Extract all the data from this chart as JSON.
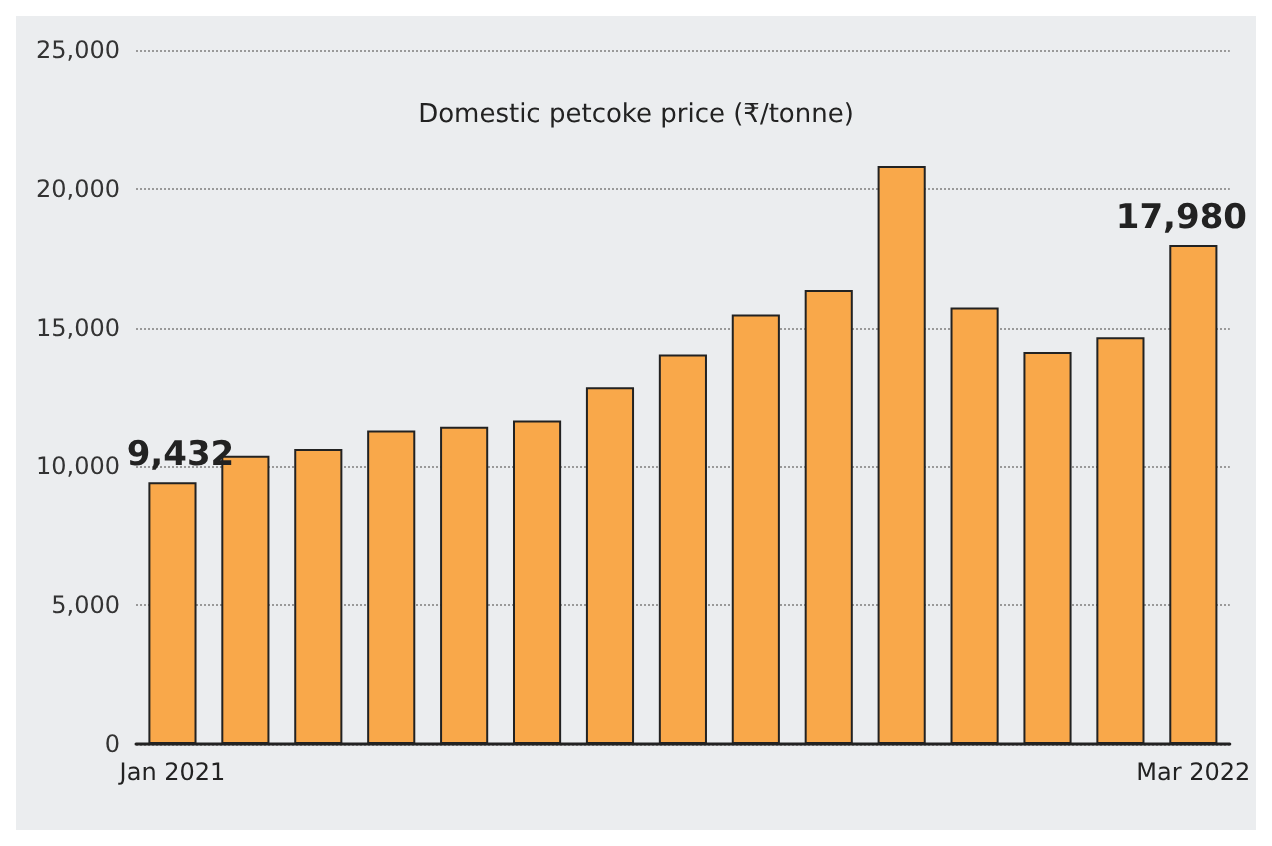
{
  "chart_data": {
    "type": "bar",
    "title": "Domestic petcoke price (₹/tonne)",
    "categories": [
      "Jan 2021",
      null,
      null,
      null,
      null,
      null,
      null,
      null,
      null,
      null,
      null,
      null,
      null,
      null,
      "Mar 2022"
    ],
    "values": [
      9432,
      10380,
      10630,
      11290,
      11430,
      11650,
      12850,
      14030,
      15470,
      16350,
      20820,
      15720,
      14120,
      14650,
      17980
    ],
    "value_labels": [
      "9,432",
      null,
      null,
      null,
      null,
      null,
      null,
      null,
      null,
      null,
      null,
      null,
      null,
      null,
      "17,980"
    ],
    "color": "#f9a84a",
    "ylim": [
      0,
      25000
    ],
    "yticks": [
      {
        "value": 0,
        "label": "0"
      },
      {
        "value": 5000,
        "label": "5,000"
      },
      {
        "value": 10000,
        "label": "10,000"
      },
      {
        "value": 15000,
        "label": "15,000"
      },
      {
        "value": 20000,
        "label": "20,000"
      },
      {
        "value": 25000,
        "label": "25,000"
      }
    ],
    "grid": "y"
  }
}
